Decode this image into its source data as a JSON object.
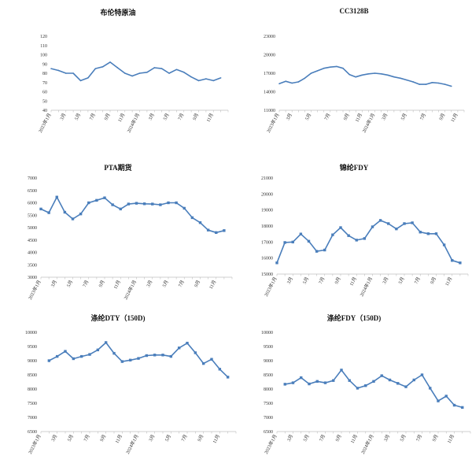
{
  "chart_data": [
    {
      "id": "brent",
      "type": "line",
      "title": "布伦特原油",
      "ylim": [
        40,
        120
      ],
      "yticks": [
        40,
        50,
        60,
        70,
        80,
        90,
        100,
        110,
        120
      ],
      "n_points": 25,
      "values": [
        85,
        83,
        80,
        80,
        72,
        75,
        85,
        87,
        92,
        86,
        80,
        77,
        80,
        81,
        86,
        85,
        80,
        84,
        81,
        76,
        72,
        74,
        72,
        75,
        null
      ],
      "xtick_labels": [
        {
          "i": 0,
          "label": "2023年1月"
        },
        {
          "i": 2,
          "label": "3月"
        },
        {
          "i": 4,
          "label": "5月"
        },
        {
          "i": 6,
          "label": "7月"
        },
        {
          "i": 8,
          "label": "9月"
        },
        {
          "i": 10,
          "label": "11月"
        },
        {
          "i": 12,
          "label": "2024年1月"
        },
        {
          "i": 14,
          "label": "3月"
        },
        {
          "i": 16,
          "label": "5月"
        },
        {
          "i": 18,
          "label": "7月"
        },
        {
          "i": 20,
          "label": "9月"
        },
        {
          "i": 22,
          "label": "11月"
        }
      ],
      "markers": false
    },
    {
      "id": "cc3128b",
      "type": "line",
      "title": "CC3128B",
      "ylim": [
        11000,
        23000
      ],
      "yticks": [
        11000,
        14000,
        17000,
        20000,
        23000
      ],
      "n_points": 30,
      "values": [
        15300,
        15700,
        15400,
        15600,
        16200,
        17000,
        17400,
        17800,
        18000,
        18100,
        17800,
        16800,
        16400,
        16700,
        16900,
        17000,
        16900,
        16700,
        16400,
        16200,
        15900,
        15600,
        15200,
        15200,
        15500,
        15400,
        15200,
        14900,
        null,
        null
      ],
      "xtick_labels": [
        {
          "i": 0,
          "label": "2023年1月"
        },
        {
          "i": 2,
          "label": "3月"
        },
        {
          "i": 5,
          "label": "5月"
        },
        {
          "i": 8,
          "label": "7月"
        },
        {
          "i": 11,
          "label": "9月"
        },
        {
          "i": 13,
          "label": "11月"
        },
        {
          "i": 15,
          "label": "2024年1月"
        },
        {
          "i": 17,
          "label": "3月"
        },
        {
          "i": 20,
          "label": "5月"
        },
        {
          "i": 23,
          "label": "7月"
        },
        {
          "i": 26,
          "label": "9月"
        },
        {
          "i": 28,
          "label": "11月"
        }
      ],
      "markers": false
    },
    {
      "id": "pta",
      "type": "line",
      "title": "PTA期货",
      "ylim": [
        3000,
        7000
      ],
      "yticks": [
        3000,
        3500,
        4000,
        4500,
        5000,
        5500,
        6000,
        6500,
        7000
      ],
      "n_points": 25,
      "values": [
        5750,
        5600,
        6230,
        5620,
        5350,
        5550,
        6000,
        6100,
        6200,
        5920,
        5750,
        5950,
        5980,
        5960,
        5950,
        5920,
        6000,
        6000,
        5780,
        5400,
        5200,
        4900,
        4800,
        4880,
        null
      ],
      "xtick_labels": [
        {
          "i": 0,
          "label": "2023年1月"
        },
        {
          "i": 2,
          "label": "3月"
        },
        {
          "i": 4,
          "label": "5月"
        },
        {
          "i": 6,
          "label": "7月"
        },
        {
          "i": 8,
          "label": "9月"
        },
        {
          "i": 10,
          "label": "11月"
        },
        {
          "i": 12,
          "label": "2024年1月"
        },
        {
          "i": 14,
          "label": "3月"
        },
        {
          "i": 16,
          "label": "5月"
        },
        {
          "i": 18,
          "label": "7月"
        },
        {
          "i": 20,
          "label": "9月"
        },
        {
          "i": 22,
          "label": "11月"
        }
      ],
      "markers": true
    },
    {
      "id": "nylon-fdy",
      "type": "line",
      "title": "锦纶FDY",
      "ylim": [
        15000,
        21000
      ],
      "yticks": [
        15000,
        16000,
        17000,
        18000,
        19000,
        20000,
        21000
      ],
      "n_points": 25,
      "values": [
        15700,
        16970,
        17000,
        17500,
        17050,
        16420,
        16500,
        17450,
        17900,
        17400,
        17120,
        17220,
        17950,
        18350,
        18150,
        17820,
        18150,
        18200,
        17620,
        17520,
        17520,
        16820,
        15850,
        15700,
        null
      ],
      "xtick_labels": [
        {
          "i": 0,
          "label": "2023年1月"
        },
        {
          "i": 2,
          "label": "3月"
        },
        {
          "i": 4,
          "label": "5月"
        },
        {
          "i": 6,
          "label": "7月"
        },
        {
          "i": 8,
          "label": "9月"
        },
        {
          "i": 10,
          "label": "11月"
        },
        {
          "i": 12,
          "label": "2024年1月"
        },
        {
          "i": 14,
          "label": "3月"
        },
        {
          "i": 16,
          "label": "5月"
        },
        {
          "i": 18,
          "label": "7月"
        },
        {
          "i": 20,
          "label": "9月"
        },
        {
          "i": 22,
          "label": "11月"
        }
      ],
      "markers": true
    },
    {
      "id": "polyester-dty",
      "type": "line",
      "title": "涤纶DTY（150D)",
      "ylim": [
        6500,
        10000
      ],
      "yticks": [
        6500,
        7000,
        7500,
        8000,
        8500,
        9000,
        9500,
        10000
      ],
      "n_points": 25,
      "values": [
        null,
        9000,
        9150,
        9330,
        9070,
        9150,
        9220,
        9380,
        9640,
        9260,
        8970,
        9020,
        9080,
        9180,
        9200,
        9200,
        9150,
        9450,
        9620,
        9280,
        8900,
        9050,
        8700,
        8420,
        null
      ],
      "xtick_labels": [
        {
          "i": 0,
          "label": "2023年1月"
        },
        {
          "i": 2,
          "label": "3月"
        },
        {
          "i": 4,
          "label": "5月"
        },
        {
          "i": 6,
          "label": "7月"
        },
        {
          "i": 8,
          "label": "9月"
        },
        {
          "i": 10,
          "label": "11月"
        },
        {
          "i": 12,
          "label": "2024年1月"
        },
        {
          "i": 14,
          "label": "3月"
        },
        {
          "i": 16,
          "label": "5月"
        },
        {
          "i": 18,
          "label": "7月"
        },
        {
          "i": 20,
          "label": "9月"
        },
        {
          "i": 22,
          "label": "11月"
        }
      ],
      "markers": true
    },
    {
      "id": "polyester-fdy",
      "type": "line",
      "title": "涤纶FDY（150D)",
      "ylim": [
        6500,
        10000
      ],
      "yticks": [
        6500,
        7000,
        7500,
        8000,
        8500,
        9000,
        9500,
        10000
      ],
      "n_points": 25,
      "values": [
        null,
        8170,
        8220,
        8400,
        8180,
        8270,
        8220,
        8300,
        8670,
        8300,
        8030,
        8120,
        8270,
        8470,
        8320,
        8200,
        8080,
        8320,
        8500,
        8030,
        7580,
        7750,
        7430,
        7350,
        null
      ],
      "xtick_labels": [
        {
          "i": 0,
          "label": "2023年1月"
        },
        {
          "i": 2,
          "label": "3月"
        },
        {
          "i": 4,
          "label": "5月"
        },
        {
          "i": 6,
          "label": "7月"
        },
        {
          "i": 8,
          "label": "9月"
        },
        {
          "i": 10,
          "label": "11月"
        },
        {
          "i": 12,
          "label": "2024年1月"
        },
        {
          "i": 14,
          "label": "3月"
        },
        {
          "i": 16,
          "label": "5月"
        },
        {
          "i": 18,
          "label": "7月"
        },
        {
          "i": 20,
          "label": "9月"
        },
        {
          "i": 22,
          "label": "11月"
        }
      ],
      "markers": true
    }
  ],
  "colors": {
    "line": "#4a7ebb",
    "axis": "#bfbfbf",
    "tick_text": "#333333"
  }
}
